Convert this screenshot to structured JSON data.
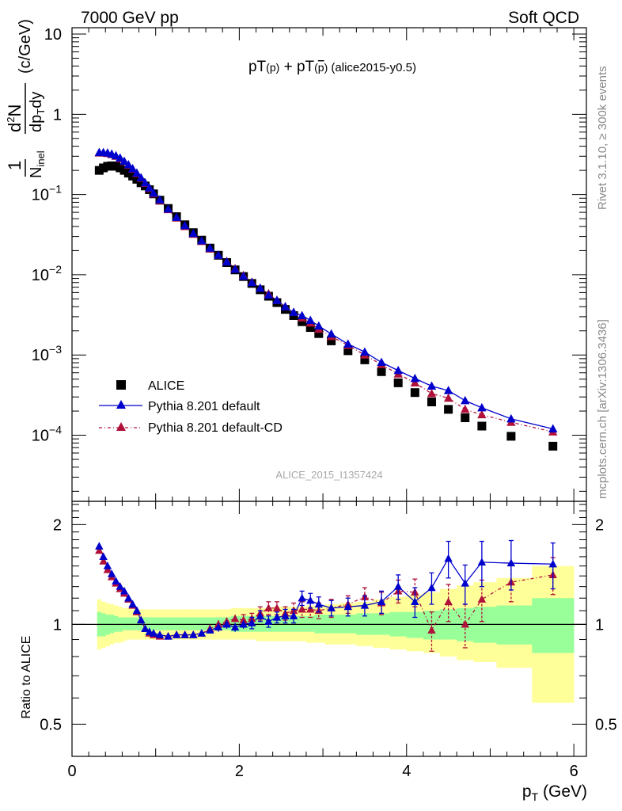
{
  "header": {
    "left": "7000 GeV pp",
    "right": "Soft QCD"
  },
  "plot_title": "pT(p) + pT(p̄) (alice2015-y0.5)",
  "side_text": {
    "rivet": "Rivet 3.1.10, ≥ 300k events",
    "mcplots": "mcplots.cern.ch [arXiv:1306.3436]"
  },
  "watermark": "ALICE_2015_I1357424",
  "upper_ylabel": "(1/N_inel) d²N/dp_T dy (c/GeV)",
  "lower_ylabel": "Ratio to ALICE",
  "xlabel": "p_T (GeV)",
  "legend": [
    {
      "label": "ALICE"
    },
    {
      "label": "Pythia 8.201 default"
    },
    {
      "label": "Pythia 8.201 default-CD"
    }
  ],
  "chart_data": [
    {
      "type": "scatter",
      "title": "pT(p) + pT(p̄) (alice2015-y0.5)",
      "xlabel": "p_T (GeV)",
      "ylabel": "(1/N_inel) d²N/dp_T dy (c/GeV)",
      "xlim": [
        0,
        6.15
      ],
      "ylim": [
        1.5e-05,
        12
      ],
      "yscale": "log",
      "x_ticks": [
        "0",
        "2",
        "4",
        "6"
      ],
      "y_ticks": [
        "10⁻⁴",
        "10⁻³",
        "10⁻²",
        "10⁻¹",
        "1",
        "10"
      ],
      "legend_position": "bottom-left",
      "x": [
        0.325,
        0.375,
        0.425,
        0.475,
        0.525,
        0.575,
        0.625,
        0.675,
        0.725,
        0.775,
        0.825,
        0.875,
        0.925,
        0.975,
        1.05,
        1.15,
        1.25,
        1.35,
        1.45,
        1.55,
        1.65,
        1.75,
        1.85,
        1.95,
        2.05,
        2.15,
        2.25,
        2.35,
        2.45,
        2.55,
        2.65,
        2.75,
        2.85,
        2.95,
        3.1,
        3.3,
        3.5,
        3.7,
        3.9,
        4.1,
        4.3,
        4.5,
        4.7,
        4.9,
        5.25,
        5.75
      ],
      "series": [
        {
          "name": "ALICE",
          "color": "#000000",
          "marker": "square",
          "values": [
            0.2,
            0.215,
            0.225,
            0.228,
            0.225,
            0.215,
            0.2,
            0.185,
            0.17,
            0.155,
            0.14,
            0.128,
            0.115,
            0.102,
            0.085,
            0.067,
            0.053,
            0.042,
            0.0335,
            0.027,
            0.0215,
            0.0175,
            0.0142,
            0.0115,
            0.0095,
            0.0078,
            0.0065,
            0.0054,
            0.0045,
            0.0037,
            0.0031,
            0.0026,
            0.0022,
            0.00185,
            0.0015,
            0.00113,
            0.00087,
            0.00062,
            0.00045,
            0.00034,
            0.00026,
            0.00021,
            0.000165,
            0.00013,
            9.7e-05,
            7.3e-05
          ]
        },
        {
          "name": "Pythia 8.201 default",
          "color": "#0000cc",
          "marker": "triangle",
          "values": [
            0.335,
            0.334,
            0.33,
            0.32,
            0.305,
            0.285,
            0.26,
            0.235,
            0.21,
            0.185,
            0.162,
            0.14,
            0.121,
            0.104,
            0.086,
            0.066,
            0.052,
            0.041,
            0.0327,
            0.0265,
            0.0215,
            0.0175,
            0.0145,
            0.0117,
            0.0096,
            0.008,
            0.0068,
            0.0056,
            0.0048,
            0.004,
            0.0034,
            0.0031,
            0.0027,
            0.0023,
            0.00183,
            0.00137,
            0.00109,
            0.00081,
            0.00064,
            0.00051,
            0.00041,
            0.00036,
            0.00027,
            0.00022,
            0.00016,
            0.00012
          ]
        },
        {
          "name": "Pythia 8.201 default-CD",
          "color": "#b0103a",
          "marker": "triangle",
          "values": [
            0.33,
            0.33,
            0.325,
            0.315,
            0.3,
            0.28,
            0.257,
            0.232,
            0.207,
            0.182,
            0.16,
            0.138,
            0.119,
            0.102,
            0.084,
            0.065,
            0.051,
            0.04,
            0.032,
            0.026,
            0.021,
            0.0175,
            0.0147,
            0.0119,
            0.0098,
            0.0081,
            0.0068,
            0.0058,
            0.0048,
            0.004,
            0.0034,
            0.0029,
            0.0025,
            0.0021,
            0.0017,
            0.00132,
            0.001,
            0.00076,
            0.00058,
            0.00045,
            0.00033,
            0.00029,
            0.00021,
            0.00018,
            0.000145,
            0.00011
          ]
        }
      ]
    },
    {
      "type": "scatter",
      "xlabel": "p_T (GeV)",
      "ylabel": "Ratio to ALICE",
      "xlim": [
        0,
        6.15
      ],
      "ylim": [
        0.4,
        2.35
      ],
      "yscale": "log",
      "x_ticks": [
        "0",
        "2",
        "4",
        "6"
      ],
      "y_ticks": [
        "0.5",
        "1",
        "2"
      ],
      "reference_line": 1,
      "bands": [
        {
          "name": "inner",
          "color": "#99ff99",
          "lower": [
            0.92,
            0.92,
            0.93,
            0.94,
            0.95,
            0.95,
            0.96,
            0.96,
            0.96,
            0.96,
            0.96,
            0.96,
            0.96,
            0.96,
            0.96,
            0.96,
            0.96,
            0.96,
            0.96,
            0.96,
            0.96,
            0.96,
            0.96,
            0.95,
            0.95,
            0.95,
            0.95,
            0.95,
            0.95,
            0.95,
            0.95,
            0.95,
            0.95,
            0.94,
            0.94,
            0.94,
            0.93,
            0.93,
            0.92,
            0.91,
            0.9,
            0.9,
            0.89,
            0.88,
            0.87,
            0.82
          ],
          "upper": [
            1.09,
            1.08,
            1.07,
            1.07,
            1.06,
            1.05,
            1.05,
            1.05,
            1.05,
            1.05,
            1.05,
            1.05,
            1.05,
            1.05,
            1.05,
            1.05,
            1.05,
            1.05,
            1.05,
            1.05,
            1.05,
            1.05,
            1.05,
            1.06,
            1.06,
            1.06,
            1.06,
            1.06,
            1.06,
            1.06,
            1.06,
            1.06,
            1.06,
            1.07,
            1.07,
            1.07,
            1.08,
            1.08,
            1.09,
            1.09,
            1.1,
            1.11,
            1.12,
            1.13,
            1.14,
            1.2
          ]
        },
        {
          "name": "outer",
          "color": "#ffff99",
          "lower": [
            0.84,
            0.85,
            0.86,
            0.87,
            0.88,
            0.88,
            0.89,
            0.9,
            0.9,
            0.9,
            0.9,
            0.9,
            0.9,
            0.9,
            0.9,
            0.9,
            0.9,
            0.9,
            0.9,
            0.9,
            0.9,
            0.9,
            0.9,
            0.9,
            0.9,
            0.9,
            0.89,
            0.89,
            0.89,
            0.89,
            0.89,
            0.89,
            0.88,
            0.88,
            0.87,
            0.87,
            0.86,
            0.85,
            0.84,
            0.83,
            0.82,
            0.8,
            0.78,
            0.77,
            0.74,
            0.58
          ],
          "upper": [
            1.19,
            1.17,
            1.16,
            1.15,
            1.14,
            1.13,
            1.12,
            1.12,
            1.11,
            1.11,
            1.11,
            1.11,
            1.11,
            1.11,
            1.11,
            1.11,
            1.11,
            1.11,
            1.11,
            1.11,
            1.11,
            1.11,
            1.11,
            1.12,
            1.12,
            1.12,
            1.12,
            1.12,
            1.13,
            1.13,
            1.13,
            1.13,
            1.14,
            1.14,
            1.15,
            1.16,
            1.17,
            1.19,
            1.21,
            1.23,
            1.25,
            1.28,
            1.31,
            1.34,
            1.38,
            1.5
          ]
        }
      ],
      "x": [
        0.325,
        0.375,
        0.425,
        0.475,
        0.525,
        0.575,
        0.625,
        0.675,
        0.725,
        0.775,
        0.825,
        0.875,
        0.925,
        0.975,
        1.05,
        1.15,
        1.25,
        1.35,
        1.45,
        1.55,
        1.65,
        1.75,
        1.85,
        1.95,
        2.05,
        2.15,
        2.25,
        2.35,
        2.45,
        2.55,
        2.65,
        2.75,
        2.85,
        2.95,
        3.1,
        3.3,
        3.5,
        3.7,
        3.9,
        4.1,
        4.3,
        4.5,
        4.7,
        4.9,
        5.25,
        5.75
      ],
      "series": [
        {
          "name": "Pythia 8.201 default",
          "color": "#0000cc",
          "marker": "triangle",
          "values": [
            1.72,
            1.6,
            1.5,
            1.42,
            1.35,
            1.3,
            1.26,
            1.2,
            1.15,
            1.1,
            1.03,
            0.97,
            0.95,
            0.94,
            0.93,
            0.92,
            0.93,
            0.93,
            0.93,
            0.94,
            0.96,
            0.98,
            1.0,
            0.98,
            1.0,
            1.01,
            1.06,
            1.02,
            1.05,
            1.06,
            1.06,
            1.2,
            1.18,
            1.15,
            1.12,
            1.13,
            1.14,
            1.17,
            1.3,
            1.17,
            1.29,
            1.58,
            1.33,
            1.54,
            1.53,
            1.52
          ],
          "errors": [
            0.02,
            0.02,
            0.02,
            0.02,
            0.02,
            0.02,
            0.02,
            0.02,
            0.02,
            0.02,
            0.02,
            0.02,
            0.02,
            0.02,
            0.02,
            0.02,
            0.02,
            0.02,
            0.02,
            0.02,
            0.02,
            0.03,
            0.03,
            0.03,
            0.03,
            0.04,
            0.04,
            0.04,
            0.04,
            0.05,
            0.05,
            0.06,
            0.06,
            0.06,
            0.06,
            0.07,
            0.08,
            0.09,
            0.11,
            0.12,
            0.14,
            0.2,
            0.18,
            0.24,
            0.26,
            0.24
          ]
        },
        {
          "name": "Pythia 8.201 default-CD",
          "color": "#b0103a",
          "marker": "triangle",
          "values": [
            1.67,
            1.55,
            1.46,
            1.39,
            1.33,
            1.28,
            1.24,
            1.19,
            1.14,
            1.09,
            1.03,
            0.97,
            0.94,
            0.93,
            0.92,
            0.92,
            0.93,
            0.93,
            0.93,
            0.94,
            0.97,
            1.0,
            1.02,
            1.04,
            1.03,
            1.04,
            1.08,
            1.12,
            1.12,
            1.08,
            1.1,
            1.11,
            1.11,
            1.1,
            1.12,
            1.15,
            1.21,
            1.16,
            1.26,
            1.25,
            0.96,
            1.17,
            1.0,
            1.19,
            1.34,
            1.41
          ],
          "errors": [
            0.02,
            0.02,
            0.02,
            0.02,
            0.02,
            0.02,
            0.02,
            0.02,
            0.02,
            0.02,
            0.02,
            0.02,
            0.02,
            0.02,
            0.02,
            0.02,
            0.02,
            0.02,
            0.02,
            0.02,
            0.03,
            0.03,
            0.03,
            0.03,
            0.04,
            0.04,
            0.05,
            0.05,
            0.05,
            0.05,
            0.06,
            0.06,
            0.06,
            0.06,
            0.07,
            0.07,
            0.08,
            0.09,
            0.1,
            0.12,
            0.13,
            0.15,
            0.15,
            0.17,
            0.17,
            0.18
          ]
        }
      ]
    }
  ]
}
